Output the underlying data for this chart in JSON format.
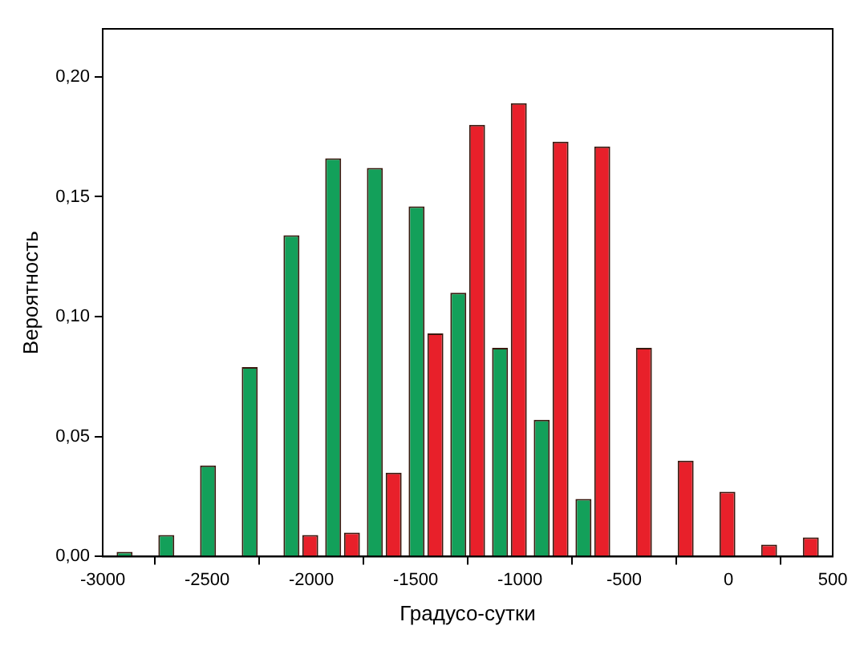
{
  "chart_data": {
    "type": "bar",
    "xlabel": "Градусо-сутки",
    "ylabel": "Вероятность",
    "xlim": [
      -3000,
      500
    ],
    "xticks": [
      -3000,
      -2500,
      -2000,
      -1500,
      -1000,
      -500,
      0,
      500
    ],
    "ylim": [
      0,
      0.22
    ],
    "yticks": [
      {
        "value": 0,
        "label": "0,00"
      },
      {
        "value": 0.05,
        "label": "0,05"
      },
      {
        "value": 0.1,
        "label": "0,10"
      },
      {
        "value": 0.15,
        "label": "0,15"
      },
      {
        "value": 0.2,
        "label": "0,20"
      }
    ],
    "grid": false,
    "legend": false,
    "series": [
      {
        "color": "#13a05a",
        "x": [
          -2850,
          -2650,
          -2450,
          -2250,
          -2050,
          -1850,
          -1650,
          -1450,
          -1250,
          -1050,
          -850,
          -650
        ],
        "values": [
          0.002,
          0.009,
          0.038,
          0.079,
          0.134,
          0.166,
          0.162,
          0.146,
          0.11,
          0.087,
          0.057,
          0.024
        ]
      },
      {
        "color": "#e8202a",
        "x": [
          -2050,
          -1850,
          -1650,
          -1450,
          -1250,
          -1050,
          -850,
          -650,
          -450,
          -250,
          -50,
          150,
          350
        ],
        "values": [
          0.009,
          0.01,
          0.035,
          0.093,
          0.18,
          0.189,
          0.173,
          0.171,
          0.087,
          0.04,
          0.027,
          0.005,
          0.008
        ]
      }
    ]
  }
}
